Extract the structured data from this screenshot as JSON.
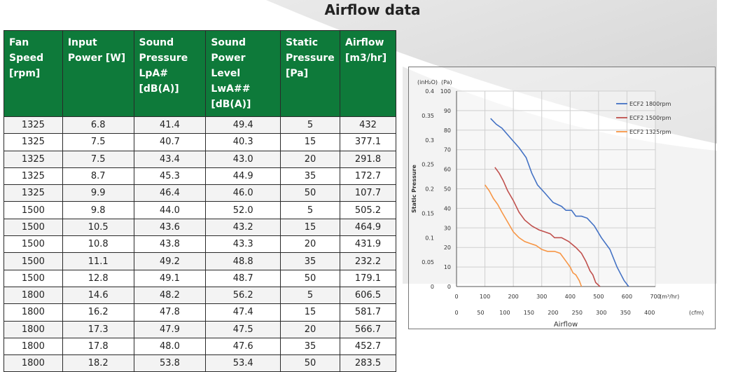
{
  "title": "Airflow data",
  "table": {
    "headers": [
      [
        "Fan",
        "Speed",
        "[rpm]"
      ],
      [
        "Input",
        "Power [W]"
      ],
      [
        "Sound",
        "Pressure",
        "LpA#",
        "[dB(A)]"
      ],
      [
        "Sound",
        "Power",
        "Level LwA##",
        "[dB(A)]"
      ],
      [
        "Static",
        "Pressure",
        "[Pa]"
      ],
      [
        "Airflow",
        "[m3/hr]"
      ]
    ],
    "rows": [
      [
        "1325",
        "6.8",
        "41.4",
        "49.4",
        "5",
        "432"
      ],
      [
        "1325",
        "7.5",
        "40.7",
        "40.3",
        "15",
        "377.1"
      ],
      [
        "1325",
        "7.5",
        "43.4",
        "43.0",
        "20",
        "291.8"
      ],
      [
        "1325",
        "8.7",
        "45.3",
        "44.9",
        "35",
        "172.7"
      ],
      [
        "1325",
        "9.9",
        "46.4",
        "46.0",
        "50",
        "107.7"
      ],
      [
        "1500",
        "9.8",
        "44.0",
        "52.0",
        "5",
        "505.2"
      ],
      [
        "1500",
        "10.5",
        "43.6",
        "43.2",
        "15",
        "464.9"
      ],
      [
        "1500",
        "10.8",
        "43.8",
        "43.3",
        "20",
        "431.9"
      ],
      [
        "1500",
        "11.1",
        "49.2",
        "48.8",
        "35",
        "232.2"
      ],
      [
        "1500",
        "12.8",
        "49.1",
        "48.7",
        "50",
        "179.1"
      ],
      [
        "1800",
        "14.6",
        "48.2",
        "56.2",
        "5",
        "606.5"
      ],
      [
        "1800",
        "16.2",
        "47.8",
        "47.4",
        "15",
        "581.7"
      ],
      [
        "1800",
        "17.3",
        "47.9",
        "47.5",
        "20",
        "566.7"
      ],
      [
        "1800",
        "17.8",
        "48.0",
        "47.6",
        "35",
        "452.7"
      ],
      [
        "1800",
        "18.2",
        "53.8",
        "53.4",
        "50",
        "283.5"
      ]
    ]
  },
  "chart_data": {
    "type": "line",
    "xlabel": "Airflow",
    "ylabel": "Static Pressure",
    "x_unit_primary": "(m³/hr)",
    "x_unit_secondary": "(cfm)",
    "y_unit_primary": "(Pa)",
    "y_unit_secondary": "(inH₂O)",
    "xlim": [
      0,
      700
    ],
    "ylim": [
      0,
      100
    ],
    "x_ticks_primary": [
      "0",
      "100",
      "200",
      "300",
      "400",
      "500",
      "600",
      "700"
    ],
    "x_ticks_secondary": [
      "0",
      "50",
      "100",
      "150",
      "200",
      "250",
      "300",
      "350",
      "400"
    ],
    "x_ticks_secondary_values": [
      0,
      50,
      100,
      150,
      200,
      250,
      300,
      350,
      400
    ],
    "y_ticks_primary": [
      "0",
      "10",
      "20",
      "30",
      "40",
      "50",
      "60",
      "70",
      "80",
      "90",
      "100"
    ],
    "y_ticks_secondary": [
      "0",
      "0.05",
      "0.1",
      "0.15",
      "0.2",
      "0.25",
      "0.3",
      "0.35",
      "0.4"
    ],
    "y_ticks_secondary_values": [
      0,
      0.05,
      0.1,
      0.15,
      0.2,
      0.25,
      0.3,
      0.35,
      0.4
    ],
    "grid": true,
    "legend": "top-right",
    "series": [
      {
        "name": "ECF2 1800rpm",
        "color": "#4472c4",
        "points": [
          [
            120,
            86
          ],
          [
            140,
            83
          ],
          [
            160,
            81
          ],
          [
            190,
            76
          ],
          [
            220,
            71
          ],
          [
            245,
            66
          ],
          [
            265,
            58
          ],
          [
            285,
            52
          ],
          [
            310,
            48
          ],
          [
            340,
            43
          ],
          [
            370,
            41
          ],
          [
            385,
            39
          ],
          [
            405,
            39
          ],
          [
            420,
            36
          ],
          [
            440,
            36
          ],
          [
            460,
            35
          ],
          [
            485,
            31
          ],
          [
            510,
            25
          ],
          [
            540,
            19
          ],
          [
            565,
            10
          ],
          [
            590,
            3
          ],
          [
            606,
            0
          ]
        ]
      },
      {
        "name": "ECF2 1500rpm",
        "color": "#c0504d",
        "points": [
          [
            135,
            61
          ],
          [
            150,
            58
          ],
          [
            165,
            54
          ],
          [
            180,
            49
          ],
          [
            200,
            44
          ],
          [
            220,
            38
          ],
          [
            240,
            34
          ],
          [
            265,
            31
          ],
          [
            290,
            29
          ],
          [
            310,
            28
          ],
          [
            330,
            27
          ],
          [
            345,
            25
          ],
          [
            370,
            25
          ],
          [
            395,
            23
          ],
          [
            420,
            20
          ],
          [
            440,
            17
          ],
          [
            455,
            13
          ],
          [
            470,
            8
          ],
          [
            480,
            6
          ],
          [
            490,
            2
          ],
          [
            505,
            0
          ]
        ]
      },
      {
        "name": "ECF2 1325rpm",
        "color": "#f79646",
        "points": [
          [
            100,
            52
          ],
          [
            115,
            49
          ],
          [
            130,
            45
          ],
          [
            145,
            42
          ],
          [
            160,
            38
          ],
          [
            180,
            33
          ],
          [
            200,
            28
          ],
          [
            220,
            25
          ],
          [
            240,
            23
          ],
          [
            260,
            22
          ],
          [
            280,
            21
          ],
          [
            300,
            19
          ],
          [
            320,
            18
          ],
          [
            345,
            18
          ],
          [
            365,
            17
          ],
          [
            385,
            13
          ],
          [
            400,
            10
          ],
          [
            410,
            7
          ],
          [
            420,
            6
          ],
          [
            432,
            3
          ],
          [
            440,
            0
          ]
        ]
      }
    ]
  }
}
